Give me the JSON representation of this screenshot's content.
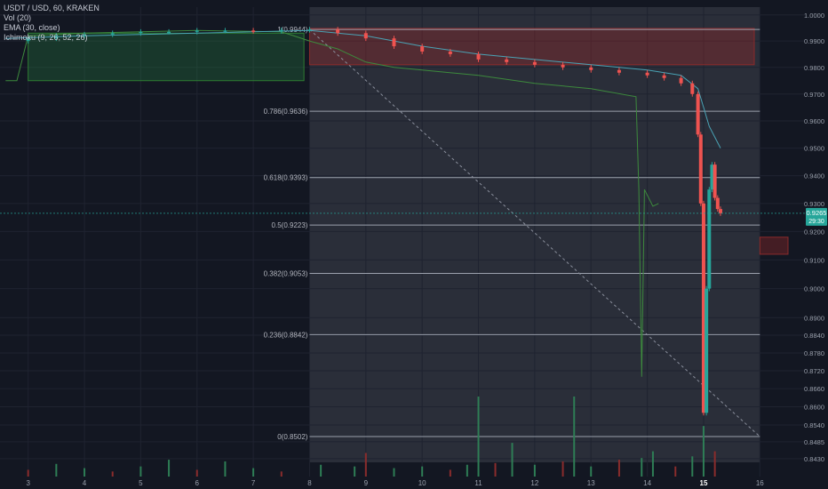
{
  "chart_data": {
    "type": "candlestick",
    "symbol_line": "USDT / USD, 60, KRAKEN",
    "indicators": [
      "Vol (20)",
      "EMA (30, close)",
      "Ichimoku (9, 26, 52, 26)"
    ],
    "x_axis": {
      "tick_labels": [
        "3",
        "4",
        "5",
        "6",
        "7",
        "8",
        "9",
        "10",
        "11",
        "12",
        "13",
        "14",
        "15",
        "16"
      ],
      "tick_days": [
        3,
        4,
        5,
        6,
        7,
        8,
        9,
        10,
        11,
        12,
        13,
        14,
        15,
        16
      ],
      "highlight": "15",
      "xlim": [
        2.5,
        16.8
      ]
    },
    "y_axis": {
      "scale": "log",
      "ylim": [
        0.8418,
        1.003
      ],
      "tick_labels": [
        "1.0000",
        "0.9900",
        "0.9800",
        "0.9700",
        "0.9600",
        "0.9500",
        "0.9400",
        "0.9300",
        "0.9200",
        "0.9100",
        "0.9000",
        "0.8900",
        "0.8840",
        "0.8780",
        "0.8720",
        "0.8660",
        "0.8600",
        "0.8540",
        "0.8485",
        "0.8430"
      ],
      "tick_values": [
        1.0,
        0.99,
        0.98,
        0.97,
        0.96,
        0.95,
        0.94,
        0.93,
        0.92,
        0.91,
        0.9,
        0.89,
        0.884,
        0.878,
        0.872,
        0.866,
        0.86,
        0.854,
        0.8485,
        0.843
      ]
    },
    "last_price": {
      "label": "0.9265",
      "countdown": "29:30",
      "value": 0.9265
    },
    "fib_retracement": {
      "start_day": 8.0,
      "end_day": 16.0,
      "levels": [
        {
          "label": "1(0.9944)",
          "value": 0.9944
        },
        {
          "label": "0.786(0.9636)",
          "value": 0.9636
        },
        {
          "label": "0.618(0.9393)",
          "value": 0.9393
        },
        {
          "label": "0.5(0.9223)",
          "value": 0.9223
        },
        {
          "label": "0.382(0.9053)",
          "value": 0.9053
        },
        {
          "label": "0.236(0.8842)",
          "value": 0.8842
        },
        {
          "label": "0(0.8502)",
          "value": 0.8502
        }
      ]
    },
    "price_path": [
      [
        2.6,
        0.99
      ],
      [
        3.0,
        0.991
      ],
      [
        3.5,
        0.992
      ],
      [
        4.0,
        0.9925
      ],
      [
        4.5,
        0.993
      ],
      [
        5.0,
        0.9935
      ],
      [
        5.5,
        0.9935
      ],
      [
        6.0,
        0.994
      ],
      [
        6.5,
        0.994
      ],
      [
        7.0,
        0.9938
      ],
      [
        7.5,
        0.9942
      ],
      [
        8.0,
        0.9944
      ],
      [
        8.5,
        0.993
      ],
      [
        9.0,
        0.991
      ],
      [
        9.5,
        0.988
      ],
      [
        10.0,
        0.986
      ],
      [
        10.5,
        0.985
      ],
      [
        11.0,
        0.983
      ],
      [
        11.5,
        0.982
      ],
      [
        12.0,
        0.981
      ],
      [
        12.5,
        0.98
      ],
      [
        13.0,
        0.979
      ],
      [
        13.5,
        0.978
      ],
      [
        14.0,
        0.977
      ],
      [
        14.3,
        0.976
      ],
      [
        14.6,
        0.974
      ],
      [
        14.8,
        0.97
      ],
      [
        14.9,
        0.955
      ],
      [
        14.95,
        0.93
      ],
      [
        15.0,
        0.858
      ],
      [
        15.05,
        0.9
      ],
      [
        15.1,
        0.935
      ],
      [
        15.15,
        0.944
      ],
      [
        15.2,
        0.932
      ],
      [
        15.25,
        0.928
      ],
      [
        15.3,
        0.9265
      ]
    ],
    "ema_path": [
      [
        2.6,
        0.991
      ],
      [
        4.0,
        0.992
      ],
      [
        6.0,
        0.993
      ],
      [
        8.0,
        0.994
      ],
      [
        9.0,
        0.992
      ],
      [
        10.0,
        0.988
      ],
      [
        11.0,
        0.985
      ],
      [
        12.0,
        0.983
      ],
      [
        13.0,
        0.981
      ],
      [
        14.0,
        0.979
      ],
      [
        14.6,
        0.977
      ],
      [
        14.9,
        0.972
      ],
      [
        15.0,
        0.965
      ],
      [
        15.1,
        0.958
      ],
      [
        15.3,
        0.95
      ]
    ],
    "lagging_span_path": [
      [
        2.6,
        0.975
      ],
      [
        2.8,
        0.975
      ],
      [
        3.0,
        0.992
      ],
      [
        4.0,
        0.993
      ],
      [
        6.0,
        0.994
      ],
      [
        7.5,
        0.9935
      ],
      [
        8.0,
        0.99
      ],
      [
        8.5,
        0.987
      ],
      [
        9.0,
        0.982
      ],
      [
        9.5,
        0.98
      ],
      [
        10.0,
        0.979
      ],
      [
        11.0,
        0.977
      ],
      [
        12.0,
        0.974
      ],
      [
        13.0,
        0.972
      ],
      [
        13.8,
        0.969
      ],
      [
        13.85,
        0.935
      ],
      [
        13.9,
        0.87
      ],
      [
        13.95,
        0.935
      ],
      [
        14.1,
        0.929
      ],
      [
        14.2,
        0.93
      ]
    ],
    "cloud": [
      {
        "from_day": 3.0,
        "to_day": 7.9,
        "top": 0.993,
        "bottom": 0.975,
        "color": "green"
      },
      {
        "from_day": 8.0,
        "to_day": 15.9,
        "top": 0.9948,
        "bottom": 0.981,
        "color": "red"
      },
      {
        "from_day": 16.0,
        "to_day": 16.5,
        "top": 0.918,
        "bottom": 0.912,
        "color": "red"
      }
    ],
    "volume": [
      [
        3.0,
        8
      ],
      [
        3.5,
        15
      ],
      [
        4.0,
        10
      ],
      [
        4.5,
        6
      ],
      [
        5.0,
        12
      ],
      [
        5.5,
        20
      ],
      [
        6.0,
        8
      ],
      [
        6.5,
        18
      ],
      [
        7.0,
        10
      ],
      [
        7.5,
        6
      ],
      [
        8.2,
        14
      ],
      [
        8.8,
        12
      ],
      [
        9.0,
        28
      ],
      [
        9.5,
        10
      ],
      [
        10.0,
        12
      ],
      [
        10.5,
        8
      ],
      [
        10.8,
        14
      ],
      [
        11.0,
        95
      ],
      [
        11.3,
        16
      ],
      [
        11.6,
        40
      ],
      [
        12.0,
        14
      ],
      [
        12.5,
        18
      ],
      [
        12.7,
        95
      ],
      [
        13.0,
        12
      ],
      [
        13.5,
        20
      ],
      [
        13.9,
        22
      ],
      [
        14.1,
        30
      ],
      [
        14.5,
        12
      ],
      [
        14.8,
        24
      ],
      [
        15.0,
        60
      ],
      [
        15.2,
        30
      ]
    ],
    "colors": {
      "background": "#131722",
      "shaded_range": "#2a2e39",
      "grid": "#1f2330",
      "up": "#26a69a",
      "down": "#ef5350",
      "ema": "#4aa3b5",
      "lagging": "#3d8a3d",
      "fib": "#9aa0ac",
      "last_price": "#26a69a"
    }
  }
}
